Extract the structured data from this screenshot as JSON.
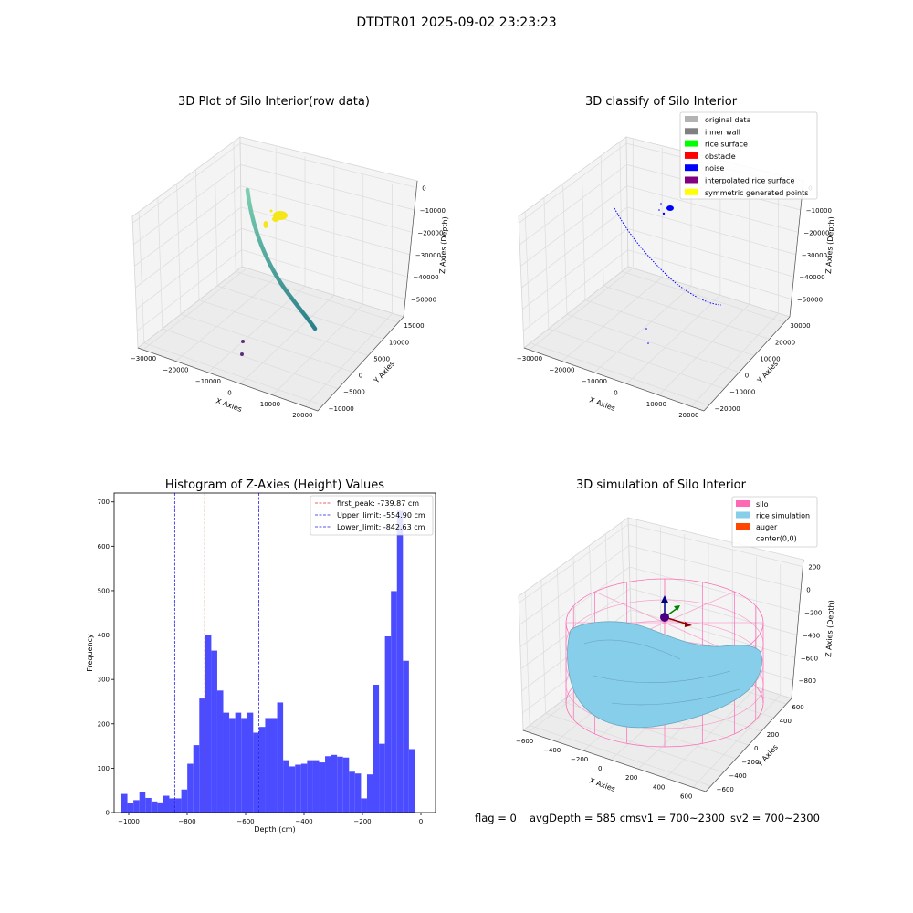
{
  "suptitle": "DTDTR01 2025-09-02 23:23:23",
  "footer": {
    "flag": "flag = 0",
    "avg_depth": "avgDepth = 585 cm",
    "sv1": "sv1 = 700~2300",
    "sv2": "sv2 = 700~2300"
  },
  "chart_data": [
    {
      "type": "scatter",
      "title": "3D Plot of Silo Interior(row data)",
      "xlabel": "X Axies",
      "ylabel": "Y Axies",
      "zlabel": "Z Axies (Depth)",
      "x_ticks": [
        "−30000",
        "−20000",
        "−10000",
        "0",
        "10000",
        "20000"
      ],
      "y_ticks": [
        "−10000",
        "−5000",
        "0",
        "5000",
        "10000",
        "15000"
      ],
      "z_ticks": [
        "0",
        "−10000",
        "−20000",
        "−30000",
        "−40000",
        "−50000"
      ],
      "colors": {
        "curve_start": "#7ccfb0",
        "curve_end": "#2a7f8a",
        "cluster": "#f5e61a",
        "points": "#5b2f7a"
      }
    },
    {
      "type": "scatter",
      "title": "3D classify of Silo Interior",
      "xlabel": "X Axies",
      "ylabel": "Y Axies",
      "zlabel": "Z Axies (Depth)",
      "x_ticks": [
        "−30000",
        "−20000",
        "−10000",
        "0",
        "10000",
        "20000"
      ],
      "y_ticks": [
        "−20000",
        "−10000",
        "0",
        "10000",
        "20000",
        "30000"
      ],
      "z_ticks": [
        "0",
        "−10000",
        "−20000",
        "−30000",
        "−40000",
        "−50000"
      ],
      "legend_position": "top-right",
      "legend": [
        {
          "label": "original data",
          "color": "#b3b3b3"
        },
        {
          "label": "inner wall",
          "color": "#808080"
        },
        {
          "label": "rice surface",
          "color": "#00ff00"
        },
        {
          "label": "obstacle",
          "color": "#ff0000"
        },
        {
          "label": "noise",
          "color": "#0000ff"
        },
        {
          "label": "interpolated rice surface",
          "color": "#800080"
        },
        {
          "label": "symmetric generated points",
          "color": "#ffff00"
        }
      ]
    },
    {
      "type": "bar",
      "title": "Histogram of Z-Axies (Height) Values",
      "xlabel": "Depth (cm)",
      "ylabel": "Frequency",
      "xlim": [
        -1050,
        50
      ],
      "ylim": [
        0,
        720
      ],
      "x_ticks": [
        -1000,
        -800,
        -600,
        -400,
        -200,
        0
      ],
      "y_ticks": [
        0,
        100,
        200,
        300,
        400,
        500,
        600,
        700
      ],
      "bin_start": -1025,
      "bin_width": 20.5,
      "bar_color": "#4b4bff",
      "values": [
        42,
        22,
        28,
        47,
        33,
        25,
        23,
        38,
        32,
        32,
        52,
        110,
        152,
        257,
        400,
        365,
        275,
        225,
        213,
        225,
        213,
        225,
        180,
        193,
        213,
        213,
        248,
        118,
        104,
        108,
        110,
        118,
        118,
        113,
        127,
        130,
        126,
        124,
        92,
        88,
        32,
        86,
        288,
        155,
        397,
        499,
        680,
        342,
        143
      ],
      "legend_position": "top-right",
      "lines": [
        {
          "label": "first_peak: -739.87 cm",
          "value": -739.87,
          "color": "#e03030"
        },
        {
          "label": "Upper_limit: -554.90 cm",
          "value": -554.9,
          "color": "#2020e0"
        },
        {
          "label": "Lower_limit: -842.63 cm",
          "value": -842.63,
          "color": "#2020e0"
        }
      ]
    },
    {
      "type": "scatter",
      "title": "3D simulation of Silo Interior",
      "xlabel": "X Axies",
      "ylabel": "Y Axies",
      "zlabel": "Z Axies (Depth)",
      "x_ticks": [
        "−600",
        "−400",
        "−200",
        "0",
        "200",
        "400",
        "600"
      ],
      "y_ticks": [
        "−600",
        "−400",
        "−200",
        "0",
        "200",
        "400",
        "600"
      ],
      "z_ticks": [
        "200",
        "0",
        "−200",
        "−400",
        "−600",
        "−800"
      ],
      "legend_position": "top-right",
      "legend": [
        {
          "label": "silo",
          "color": "#ff69b4"
        },
        {
          "label": "rice simulation",
          "color": "#87ceeb"
        },
        {
          "label": "auger",
          "color": "#ff4500"
        },
        {
          "label": "center(0,0)",
          "color": "#ffffff"
        }
      ]
    }
  ]
}
